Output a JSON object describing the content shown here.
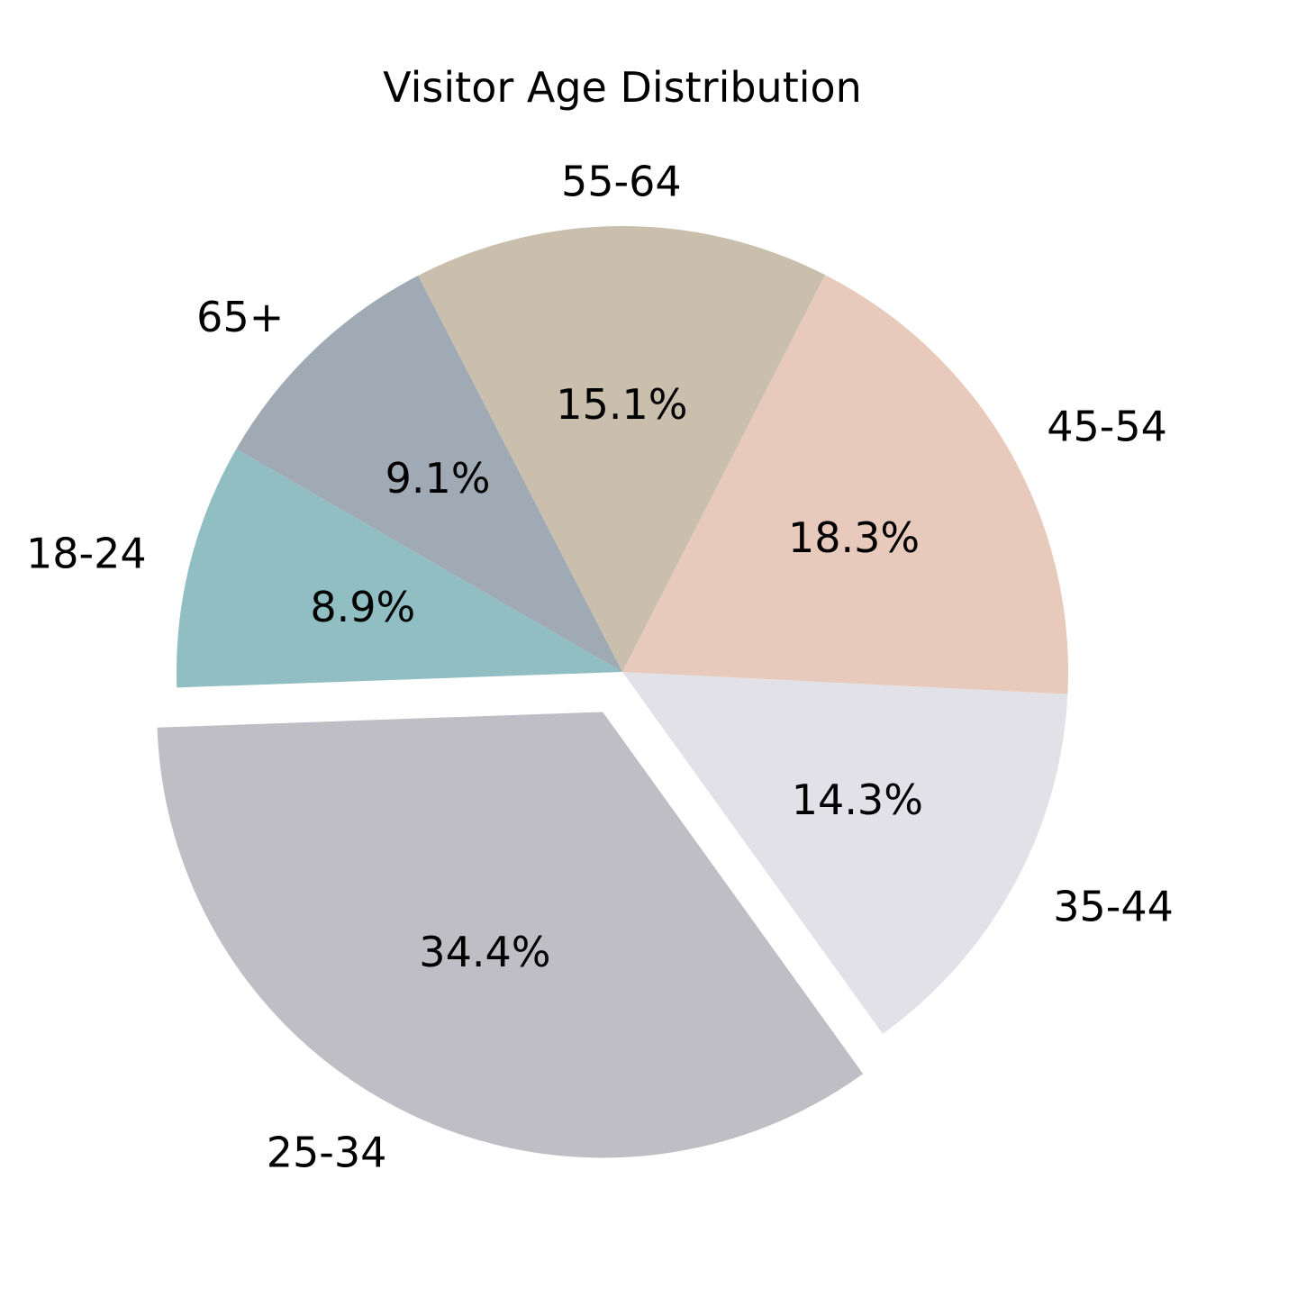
{
  "chart_data": {
    "type": "pie",
    "title": "Visitor Age Distribution",
    "categories": [
      "18-24",
      "25-34",
      "35-44",
      "45-54",
      "55-64",
      "65+"
    ],
    "values": [
      8.9,
      34.4,
      14.3,
      18.3,
      15.1,
      9.1
    ],
    "value_labels": [
      "8.9%",
      "34.4%",
      "14.3%",
      "18.3%",
      "15.1%",
      "9.1%"
    ],
    "colors": [
      "#90bec2",
      "#bfbec5",
      "#e2e1e8",
      "#e7cabb",
      "#cabeac",
      "#a0aab5"
    ],
    "exploded": [
      "25-34"
    ],
    "start_angle_deg": 150,
    "direction": "counterclockwise"
  }
}
